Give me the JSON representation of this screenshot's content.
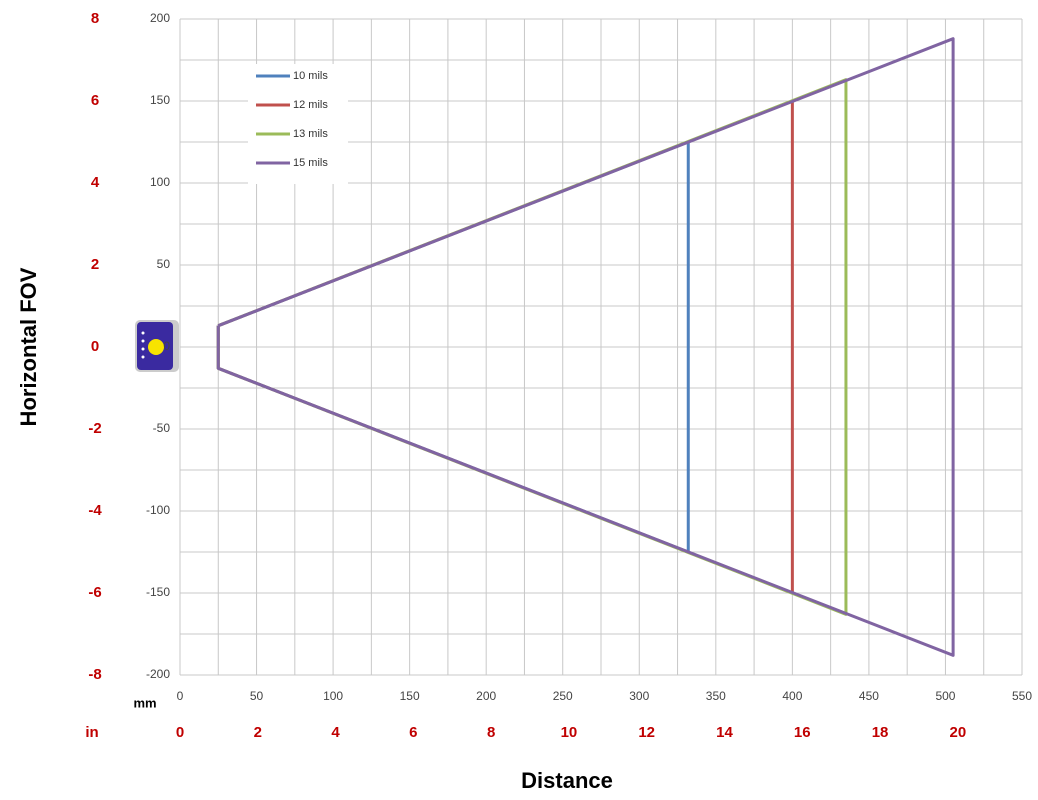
{
  "chart_data": {
    "type": "line",
    "y_axis_title": "Horizontal FOV",
    "x_axis_title": "Distance",
    "x_unit_label": "mm",
    "x2_unit_label": "in",
    "xlim": [
      0,
      550
    ],
    "xticks": [
      0,
      50,
      100,
      150,
      200,
      250,
      300,
      350,
      400,
      450,
      500,
      550
    ],
    "x2lim": [
      0,
      21.65
    ],
    "x2ticks": [
      0,
      2,
      4,
      6,
      8,
      10,
      12,
      14,
      16,
      18,
      20
    ],
    "ylim": [
      -200,
      200
    ],
    "yticks": [
      -200,
      -150,
      -100,
      -50,
      0,
      50,
      100,
      150,
      200
    ],
    "y2lim": [
      -8,
      8
    ],
    "y2ticks": [
      -8,
      -6,
      -4,
      -2,
      0,
      2,
      4,
      6,
      8
    ],
    "grid": true,
    "legend": "upper-left",
    "series": [
      {
        "name": "10 mils",
        "color": "#4f81bd",
        "x": [
          25,
          332,
          332,
          25,
          25
        ],
        "values": [
          13,
          125,
          -125,
          -13,
          13
        ]
      },
      {
        "name": "12 mils",
        "color": "#c0504d",
        "x": [
          25,
          400,
          400,
          25,
          25
        ],
        "values": [
          13,
          150,
          -150,
          -13,
          13
        ]
      },
      {
        "name": "13 mils",
        "color": "#9bbb59",
        "x": [
          25,
          435,
          435,
          25,
          25
        ],
        "values": [
          13,
          163,
          -163,
          -13,
          13
        ]
      },
      {
        "name": "15 mils",
        "color": "#8064a2",
        "x": [
          25,
          505,
          505,
          25,
          25
        ],
        "values": [
          13,
          188,
          -188,
          -13,
          13
        ]
      }
    ]
  }
}
